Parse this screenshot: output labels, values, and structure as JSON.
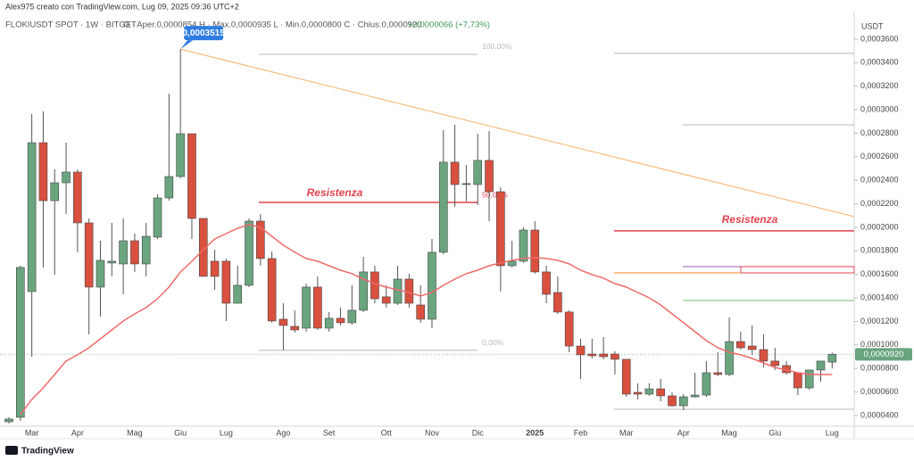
{
  "chart_data": {
    "type": "candlestick",
    "credit": "Alex975 creato con TradingView.com, Lug 09, 2025 09:36 UTC+2",
    "title": "FLOKIUSDT SPOT · 1W · BITGET",
    "ohlc_text": "O · Aper.0,0000854  H · Max.0,0000935  L · Min.0,0000800  C · Chius.0,0000920",
    "change_text": "+0,0000066 (+7,73%)",
    "axis_unit": "USDT",
    "brand": "TradingView",
    "up_color": "#6aa57f",
    "down_color": "#d9503f",
    "categories": [
      null,
      null,
      "Mar",
      null,
      null,
      null,
      "Apr",
      null,
      null,
      null,
      null,
      "Mag",
      null,
      null,
      null,
      "Giu",
      null,
      null,
      null,
      "Lug",
      null,
      null,
      null,
      null,
      "Ago",
      null,
      null,
      null,
      "Set",
      null,
      null,
      null,
      null,
      "Ott",
      null,
      null,
      null,
      "Nov",
      null,
      null,
      null,
      "Dic",
      null,
      null,
      null,
      null,
      "2025",
      null,
      null,
      null,
      "Feb",
      null,
      null,
      null,
      "Mar",
      null,
      null,
      null,
      null,
      "Apr",
      null,
      null,
      null,
      "Mag",
      null,
      null,
      null,
      "Giu",
      null,
      null,
      null,
      null,
      "Lug"
    ],
    "open": [
      3.47e-05,
      3.85e-05,
      0.0001454,
      0.000272,
      0.0002227,
      0.0002379,
      0.000247,
      0.0002038,
      0.0001492,
      0.0001697,
      0.0001689,
      0.0001886,
      0.0001689,
      0.0001917,
      0.000225,
      0.0002432,
      0.0002796,
      0.0002076,
      0.0001712,
      0.0001712,
      0.0001355,
      0.0001507,
      0.0002053,
      0.0001735,
      0.0001219,
      0.0001158,
      0.0001143,
      0.0001492,
      0.0001143,
      0.0001227,
      0.0001189,
      0.0001295,
      0.0001621,
      0.0001409,
      0.0001355,
      0.000156,
      0.000134,
      0.0001219,
      0.0001788,
      0.0002554,
      0.0002364,
      0.0002364,
      0.0002569,
      0.0002303,
      0.0001674,
      0.0001712,
      0.0001977,
      0.0001621,
      0.0001446,
      0.000128,
      9.91e-05,
      9.23e-05,
      9.23e-05,
      9.23e-05,
      8.78e-05,
      5.97e-05,
      5.82e-05,
      6.27e-05,
      5.67e-05,
      4.83e-05,
      5.59e-05,
      5.74e-05,
      7.64e-05,
      7.49e-05,
      0.0001029,
      9.91e-05,
      9.61e-05,
      8.63e-05,
      8.25e-05,
      7.64e-05,
      6.35e-05,
      7.87e-05,
      8.54e-05
    ],
    "high": [
      3.85e-05,
      0.0001674,
      0.0002963,
      0.0002986,
      0.0002493,
      0.000272,
      0.0002493,
      0.0002076,
      0.0001886,
      0.0002038,
      0.0002076,
      0.0001947,
      0.0002038,
      0.0002281,
      0.0003137,
      0.0003515,
      0.0002796,
      0.0002076,
      0.000181,
      0.0001735,
      0.0001674,
      0.0002076,
      0.0002114,
      0.0001795,
      0.0001355,
      0.0001295,
      0.0001522,
      0.0001583,
      0.000128,
      0.0001318,
      0.0001507,
      0.000175,
      0.0001674,
      0.0001507,
      0.0001674,
      0.0001606,
      0.0001507,
      0.0001901,
      0.0002827,
      0.0002872,
      0.0002531,
      0.0002796,
      0.0002819,
      0.0002341,
      0.0001886,
      0.0002,
      0.0002053,
      0.0001674,
      0.0001583,
      0.0001295,
      0.0001052,
      0.0001052,
      0.0001067,
      9.46e-05,
      8.78e-05,
      6.73e-05,
      6.73e-05,
      7.11e-05,
      5.97e-05,
      5.82e-05,
      7.64e-05,
      8.63e-05,
      9.38e-05,
      0.0001234,
      0.0001113,
      0.0001166,
      0.000109,
      9.76e-05,
      8.63e-05,
      7.64e-05,
      7.87e-05,
      8.63e-05,
      9.35e-05
    ],
    "low": [
      3.32e-05,
      3.54e-05,
      9e-05,
      0.0001659,
      0.0001598,
      0.0002114,
      0.0001788,
      0.000109,
      0.0001242,
      0.0001583,
      0.0001431,
      0.0001621,
      0.0001583,
      0.0001901,
      0.0002227,
      0.0002417,
      0.0001901,
      0.0001583,
      0.0001469,
      0.0001204,
      0.0001355,
      0.0001492,
      0.0001674,
      0.0001189,
      9.54e-05,
      0.0001105,
      0.0001113,
      0.0001128,
      0.0001113,
      0.0001166,
      0.0001173,
      0.000128,
      0.0001355,
      0.0001318,
      0.000134,
      0.0001318,
      0.0001189,
      0.0001143,
      0.0001772,
      0.0002174,
      0.000222,
      0.000219,
      0.0002053,
      0.0001454,
      0.0001659,
      0.0001697,
      0.0001606,
      0.0001355,
      0.0001264,
      9.38e-05,
      7.11e-05,
      8.85e-05,
      8.78e-05,
      7.49e-05,
      5.59e-05,
      5.36e-05,
      5.67e-05,
      5.21e-05,
      4.76e-05,
      4.45e-05,
      5.52e-05,
      5.59e-05,
      7.34e-05,
      7.34e-05,
      9.61e-05,
      9.16e-05,
      8.09e-05,
      7.87e-05,
      7.49e-05,
      5.74e-05,
      6.2e-05,
      6.88e-05,
      8e-05
    ],
    "close": [
      3.7e-05,
      0.0001659,
      0.000272,
      0.0002227,
      0.0002379,
      0.000247,
      0.0002038,
      0.0001492,
      0.0001719,
      0.0001712,
      0.0001886,
      0.0001689,
      0.0001924,
      0.000225,
      0.0002432,
      0.0002796,
      0.0002076,
      0.0001583,
      0.0001583,
      0.0001355,
      0.0001507,
      0.0002053,
      0.0001735,
      0.0001204,
      0.0001166,
      0.0001128,
      0.0001492,
      0.0001143,
      0.0001227,
      0.0001189,
      0.0001295,
      0.0001621,
      0.0001393,
      0.0001355,
      0.000156,
      0.0001355,
      0.0001219,
      0.0001788,
      0.0002554,
      0.0002364,
      0.0002372,
      0.0002569,
      0.0002303,
      0.0001674,
      0.0001712,
      0.0001977,
      0.0001621,
      0.0001431,
      0.000128,
      9.91e-05,
      9.16e-05,
      9.08e-05,
      9e-05,
      8.78e-05,
      5.82e-05,
      5.82e-05,
      6.27e-05,
      5.67e-05,
      4.83e-05,
      5.59e-05,
      5.74e-05,
      7.64e-05,
      7.49e-05,
      0.0001029,
      9.76e-05,
      9.61e-05,
      8.63e-05,
      8.25e-05,
      7.64e-05,
      6.35e-05,
      7.87e-05,
      8.63e-05,
      9.2e-05
    ],
    "close_label": "0,0000920",
    "high_label": "0,0003515",
    "ma": {
      "color": "#f06a6a",
      "values": [
        null,
        4.08e-05,
        5.36e-05,
        6.35e-05,
        7.49e-05,
        8.63e-05,
        9.16e-05,
        9.76e-05,
        0.0001052,
        0.0001128,
        0.0001204,
        0.0001264,
        0.0001318,
        0.0001393,
        0.0001492,
        0.0001621,
        0.0001712,
        0.000181,
        0.0001901,
        0.0001947,
        0.0001992,
        0.0002023,
        0.0002,
        0.0001924,
        0.0001848,
        0.0001788,
        0.0001735,
        0.0001712,
        0.0001674,
        0.0001636,
        0.0001606,
        0.000156,
        0.0001522,
        0.0001492,
        0.0001469,
        0.0001446,
        0.0001416,
        0.0001446,
        0.0001507,
        0.000156,
        0.0001606,
        0.0001636,
        0.0001674,
        0.0001697,
        0.0001719,
        0.0001735,
        0.0001742,
        0.0001735,
        0.0001719,
        0.0001689,
        0.0001636,
        0.0001598,
        0.0001568,
        0.0001522,
        0.0001492,
        0.0001446,
        0.0001401,
        0.000134,
        0.0001264,
        0.0001189,
        0.0001113,
        0.0001037,
        9.76e-05,
        9.38e-05,
        9.16e-05,
        8.85e-05,
        8.47e-05,
        8.09e-05,
        7.87e-05,
        7.64e-05,
        7.49e-05,
        7.49e-05,
        7.49e-05
      ]
    },
    "trendline": {
      "color": "#f7b26b",
      "values": [
        0.0003515,
        0.0002091
      ]
    },
    "levels": [
      {
        "value": 0.0003471,
        "color": "#b8b8b8"
      },
      {
        "value": 0.0002212,
        "color": "#e2434f"
      },
      {
        "value": 9.54e-05,
        "color": "#b8b8b8"
      },
      {
        "value": 0.0003479,
        "color": "#b8b8b8"
      },
      {
        "value": 0.0002872,
        "color": "#b8b8b8"
      },
      {
        "value": 0.000197,
        "color": "#e2434f"
      },
      {
        "value": 0.0001666,
        "color": "#9c5bb0"
      },
      {
        "value": 0.0001613,
        "color": "#f08a24"
      },
      {
        "value": 0.0001378,
        "color": "#6cc06c"
      },
      {
        "value": 4.53e-05,
        "color": "#b8b8b8"
      }
    ],
    "fib_labels": [
      "100,00%",
      "50,00%",
      "0,00%"
    ],
    "annotations": [
      "Resistenza",
      "Resistenza"
    ],
    "ylim": [
      3.09e-05,
      0.0003827
    ],
    "yticks": [
      {
        "value": 4e-05,
        "label": "0,0000400"
      },
      {
        "value": 6e-05,
        "label": "0,0000600"
      },
      {
        "value": 8e-05,
        "label": "0,0000800"
      },
      {
        "value": 0.0001,
        "label": "0,0001000"
      },
      {
        "value": 0.00012,
        "label": "0,0001200"
      },
      {
        "value": 0.00014,
        "label": "0,0001400"
      },
      {
        "value": 0.00016,
        "label": "0,0001600"
      },
      {
        "value": 0.00018,
        "label": "0,0001800"
      },
      {
        "value": 0.0002,
        "label": "0,0002000"
      },
      {
        "value": 0.00022,
        "label": "0,0002200"
      },
      {
        "value": 0.00024,
        "label": "0,0002400"
      },
      {
        "value": 0.00026,
        "label": "0,0002600"
      },
      {
        "value": 0.00028,
        "label": "0,0002800"
      },
      {
        "value": 0.0003,
        "label": "0,0003000"
      },
      {
        "value": 0.00032,
        "label": "0,0003200"
      },
      {
        "value": 0.00034,
        "label": "0,0003400"
      },
      {
        "value": 0.00036,
        "label": "0,0003600"
      }
    ],
    "grid": false
  }
}
